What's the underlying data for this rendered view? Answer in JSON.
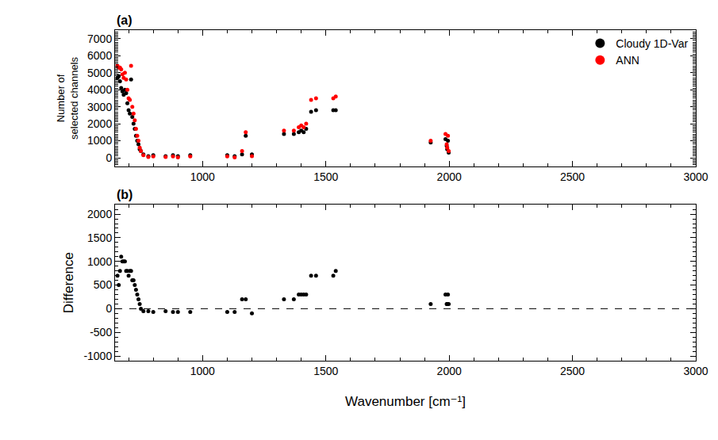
{
  "chart_data": [
    {
      "type": "scatter",
      "title": "(a)",
      "ylabel": "Number of\nselected channels",
      "legend": "upper right",
      "marker": "circle",
      "xlim": [
        645,
        3000
      ],
      "xticks": [
        1000,
        1500,
        2000,
        2500,
        3000
      ],
      "ylim": [
        -500,
        7500
      ],
      "yticks": [
        0,
        1000,
        2000,
        3000,
        4000,
        5000,
        6000,
        7000
      ],
      "x": [
        655,
        660,
        665,
        670,
        675,
        680,
        685,
        690,
        695,
        700,
        705,
        710,
        715,
        720,
        725,
        730,
        735,
        740,
        745,
        750,
        760,
        780,
        800,
        850,
        880,
        900,
        950,
        1100,
        1130,
        1160,
        1175,
        1200,
        1330,
        1370,
        1390,
        1400,
        1410,
        1420,
        1440,
        1460,
        1530,
        1540,
        1925,
        1985,
        1990,
        1992,
        1995,
        1998
      ],
      "series": [
        {
          "name": "Cloudy 1D-Var",
          "color": "#000000",
          "values": [
            4700,
            4800,
            4500,
            4100,
            3900,
            3700,
            4000,
            3800,
            3200,
            2800,
            2600,
            4600,
            2400,
            2000,
            1700,
            1300,
            1000,
            800,
            500,
            400,
            200,
            100,
            150,
            100,
            150,
            100,
            150,
            150,
            100,
            200,
            1300,
            200,
            1400,
            1400,
            1500,
            1600,
            1500,
            1700,
            2700,
            2800,
            2800,
            2800,
            900,
            1100,
            700,
            500,
            1000,
            300
          ]
        },
        {
          "name": "ANN",
          "color": "#ff0000",
          "values": [
            5400,
            5300,
            5300,
            5200,
            4900,
            4700,
            5000,
            4600,
            4000,
            3500,
            3400,
            5400,
            3000,
            2600,
            2200,
            1700,
            1300,
            1000,
            600,
            400,
            150,
            50,
            80,
            50,
            80,
            30,
            80,
            80,
            30,
            400,
            1500,
            100,
            1600,
            1600,
            1800,
            1900,
            1800,
            2000,
            3400,
            3500,
            3500,
            3600,
            1000,
            1400,
            800,
            600,
            1300,
            400
          ]
        }
      ]
    },
    {
      "type": "scatter",
      "title": "(b)",
      "ylabel": "Difference",
      "xlabel": "Wavenumber [cm⁻¹]",
      "marker": "circle",
      "xlim": [
        645,
        3000
      ],
      "xticks": [
        1000,
        1500,
        2000,
        2500,
        3000
      ],
      "ylim": [
        -1100,
        2200
      ],
      "yticks": [
        -1000,
        -500,
        0,
        500,
        1000,
        1500,
        2000
      ],
      "x": [
        655,
        660,
        665,
        670,
        675,
        680,
        685,
        690,
        695,
        700,
        705,
        710,
        715,
        720,
        725,
        730,
        735,
        740,
        745,
        750,
        760,
        780,
        800,
        850,
        880,
        900,
        950,
        1100,
        1130,
        1160,
        1175,
        1200,
        1330,
        1370,
        1390,
        1400,
        1410,
        1420,
        1440,
        1460,
        1530,
        1540,
        1925,
        1985,
        1990,
        1992,
        1995,
        1998
      ],
      "series": [
        {
          "color": "#000000",
          "values": [
            700,
            500,
            800,
            1100,
            1000,
            1000,
            1000,
            800,
            800,
            700,
            800,
            800,
            600,
            600,
            500,
            400,
            300,
            200,
            100,
            0,
            -50,
            -50,
            -70,
            -50,
            -70,
            -70,
            -70,
            -70,
            -70,
            200,
            200,
            -100,
            200,
            200,
            300,
            300,
            300,
            300,
            700,
            700,
            700,
            800,
            100,
            300,
            100,
            100,
            300,
            100
          ]
        },
        {
          "type": "line",
          "line_style": "dashed",
          "color": "#000000",
          "x": [
            645,
            3000
          ],
          "values": [
            0,
            0
          ]
        }
      ]
    }
  ]
}
